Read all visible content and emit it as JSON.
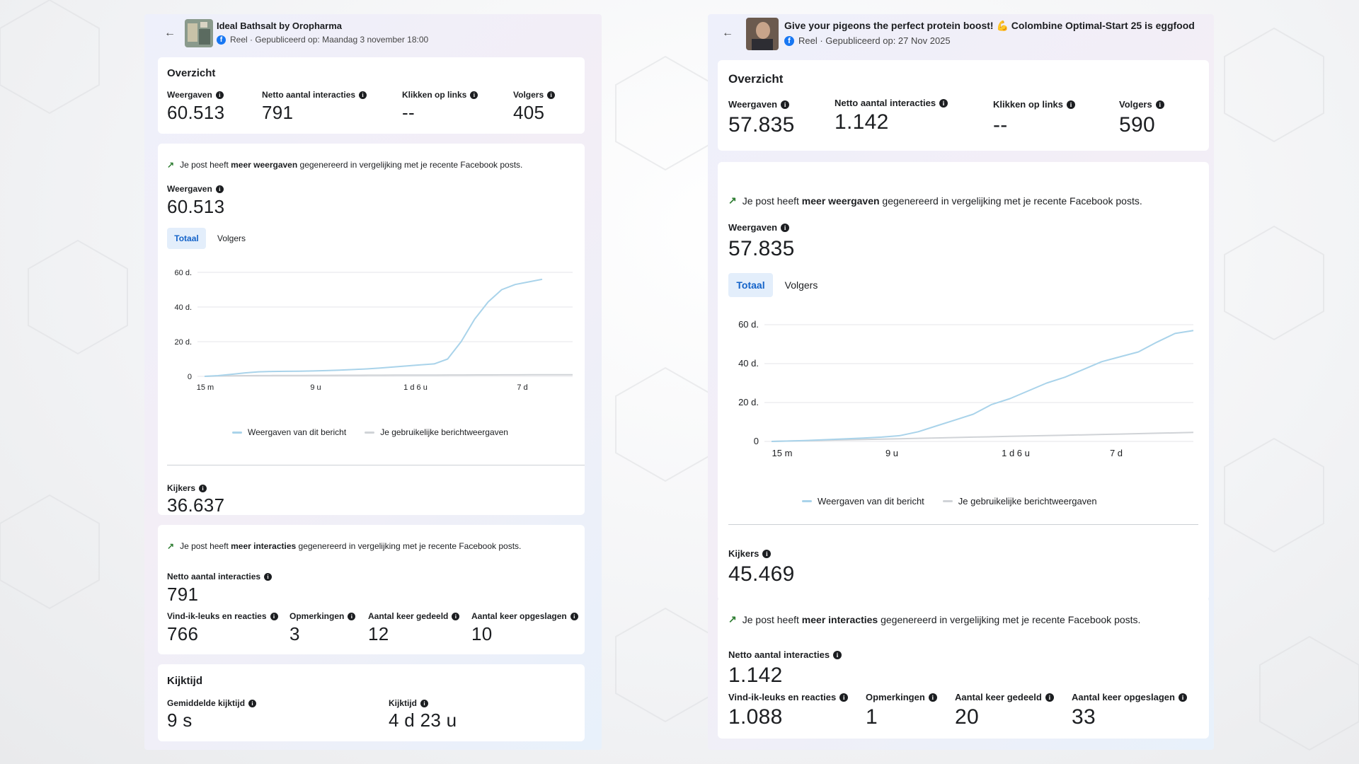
{
  "left": {
    "header": {
      "back_icon": "arrow-left-icon",
      "title": "Ideal Bathsalt by Oropharma",
      "subtitle": "Reel · Gepubliceerd op: Maandag 3 november 18:00"
    },
    "overview": {
      "title": "Overzicht",
      "metrics": [
        {
          "label": "Weergaven",
          "value": "60.513"
        },
        {
          "label": "Netto aantal interacties",
          "value": "791"
        },
        {
          "label": "Klikken op links",
          "value": "--"
        },
        {
          "label": "Volgers",
          "value": "405"
        }
      ]
    },
    "views": {
      "insight_pre": "Je post heeft ",
      "insight_bold": "meer weergaven",
      "insight_post": " gegenereerd in vergelijking met je recente Facebook posts.",
      "label": "Weergaven",
      "value": "60.513",
      "tabs": [
        "Totaal",
        "Volgers"
      ],
      "viewers_label": "Kijkers",
      "viewers_value": "36.637"
    },
    "interactions": {
      "insight_pre": "Je post heeft ",
      "insight_bold": "meer interacties",
      "insight_post": " gegenereerd in vergelijking met je recente Facebook posts.",
      "label": "Netto aantal interacties",
      "value": "791",
      "metrics": [
        {
          "label": "Vind-ik-leuks en reacties",
          "value": "766"
        },
        {
          "label": "Opmerkingen",
          "value": "3"
        },
        {
          "label": "Aantal keer gedeeld",
          "value": "12"
        },
        {
          "label": "Aantal keer opgeslagen",
          "value": "10"
        }
      ]
    },
    "watchtime": {
      "title": "Kijktijd",
      "metrics": [
        {
          "label": "Gemiddelde kijktijd",
          "value": "9 s"
        },
        {
          "label": "Kijktijd",
          "value": "4 d 23 u"
        }
      ]
    }
  },
  "right": {
    "header": {
      "back_icon": "arrow-left-icon",
      "title": "Give your pigeons the perfect protein boost! 💪 Colombine Optimal-Start 25 is eggfood",
      "subtitle": "Reel · Gepubliceerd op: 27 Nov 2025"
    },
    "overview": {
      "title": "Overzicht",
      "metrics": [
        {
          "label": "Weergaven",
          "value": "57.835"
        },
        {
          "label": "Netto aantal interacties",
          "value": "1.142"
        },
        {
          "label": "Klikken op links",
          "value": "--"
        },
        {
          "label": "Volgers",
          "value": "590"
        }
      ]
    },
    "views": {
      "insight_pre": "Je post heeft ",
      "insight_bold": "meer weergaven",
      "insight_post": " gegenereerd in vergelijking met je recente Facebook posts.",
      "label": "Weergaven",
      "value": "57.835",
      "tabs": [
        "Totaal",
        "Volgers"
      ],
      "viewers_label": "Kijkers",
      "viewers_value": "45.469"
    },
    "interactions": {
      "insight_pre": "Je post heeft ",
      "insight_bold": "meer interacties",
      "insight_post": " gegenereerd in vergelijking met je recente Facebook posts.",
      "label": "Netto aantal interacties",
      "value": "1.142",
      "metrics": [
        {
          "label": "Vind-ik-leuks en reacties",
          "value": "1.088"
        },
        {
          "label": "Opmerkingen",
          "value": "1"
        },
        {
          "label": "Aantal keer gedeeld",
          "value": "20"
        },
        {
          "label": "Aantal keer opgeslagen",
          "value": "33"
        }
      ]
    }
  },
  "colors": {
    "series_post": "#a9d3ea",
    "series_usual": "#d0d3d7",
    "accent": "#1877f2"
  },
  "chart_data": [
    {
      "type": "line",
      "x_ticks": [
        "15 m",
        "9 u",
        "1 d 6 u",
        "7 d"
      ],
      "y_ticks": [
        "0",
        "20 d.",
        "40 d.",
        "60 d."
      ],
      "ylim": [
        0,
        60000
      ],
      "legend": "bottom",
      "grid": true,
      "series": [
        {
          "name": "Weergaven van dit bericht",
          "values": [
            0,
            400,
            1200,
            2000,
            2600,
            2800,
            2900,
            3000,
            3100,
            3300,
            3600,
            3900,
            4300,
            4800,
            5400,
            6000,
            6600,
            7200,
            10000,
            20000,
            33000,
            43000,
            50000,
            53000,
            54500,
            56000
          ]
        },
        {
          "name": "Je gebruikelijke berichtweergaven",
          "values": [
            0,
            200,
            300,
            400,
            450,
            500,
            520,
            540,
            560,
            580,
            600,
            620,
            640,
            660,
            680,
            700,
            720,
            740,
            760,
            780,
            800,
            820,
            840,
            860,
            880,
            900,
            920,
            940
          ]
        }
      ]
    },
    {
      "type": "line",
      "x_ticks": [
        "15 m",
        "9 u",
        "1 d 6 u",
        "7 d"
      ],
      "y_ticks": [
        "0",
        "20 d.",
        "40 d.",
        "60 d."
      ],
      "ylim": [
        0,
        60000
      ],
      "legend": "bottom",
      "grid": true,
      "series": [
        {
          "name": "Weergaven van dit bericht",
          "values": [
            0,
            200,
            500,
            900,
            1300,
            1700,
            2200,
            3000,
            5000,
            8000,
            11000,
            14000,
            19000,
            22000,
            26000,
            30000,
            33000,
            37000,
            41000,
            43500,
            46000,
            51000,
            55500,
            57000
          ]
        },
        {
          "name": "Je gebruikelijke berichtweergaven",
          "values": [
            0,
            200,
            400,
            600,
            800,
            1000,
            1200,
            1400,
            1600,
            1800,
            2000,
            2200,
            2400,
            2600,
            2800,
            3000,
            3200,
            3400,
            3600,
            3800,
            4000,
            4200,
            4400,
            4600
          ]
        }
      ]
    }
  ]
}
